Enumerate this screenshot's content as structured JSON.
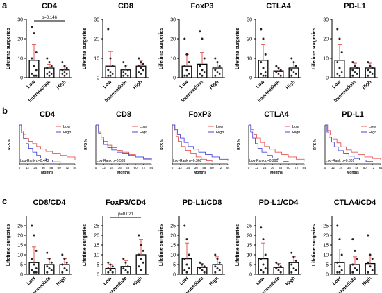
{
  "figure": {
    "panel_labels": [
      "a",
      "b",
      "c"
    ]
  },
  "style": {
    "bar_stroke": "#000000",
    "point_color": "#222222",
    "errorbar_color": "#e05a5a",
    "low_color": "#e05a5a",
    "high_color": "#4a4ad6",
    "text_color": "#000000"
  },
  "chart_data": [
    {
      "panel": "a",
      "type": "bar",
      "title": "CD4",
      "ylabel": "Lifetime surgeries",
      "categories": [
        "Low",
        "Intermediate",
        "High"
      ],
      "values": [
        9,
        5,
        4
      ],
      "err": [
        8,
        2,
        2.5
      ],
      "ylim": [
        0,
        30
      ],
      "yticks": [
        0,
        10,
        20,
        30
      ],
      "points": [
        [
          26,
          23,
          13,
          10,
          6,
          4,
          2,
          1,
          1
        ],
        [
          10,
          8,
          6,
          5,
          3,
          2,
          2,
          1
        ],
        [
          8,
          6,
          5,
          4,
          3,
          2,
          2,
          1
        ]
      ],
      "annotations": [
        {
          "text": "p=0.146",
          "from": 0,
          "to": 2
        }
      ]
    },
    {
      "panel": "a",
      "type": "bar",
      "title": "CD8",
      "ylabel": "Lifetime surgeries",
      "categories": [
        "Low",
        "Intermediate",
        "High"
      ],
      "values": [
        6,
        4,
        6
      ],
      "err": [
        7.5,
        2.5,
        3
      ],
      "ylim": [
        0,
        30
      ],
      "yticks": [
        0,
        10,
        20,
        30
      ],
      "points": [
        [
          25,
          10,
          6,
          4,
          3,
          2,
          1,
          1
        ],
        [
          8,
          6,
          4,
          3,
          2,
          1,
          1
        ],
        [
          10,
          8,
          7,
          6,
          5,
          4,
          3,
          2
        ]
      ],
      "annotations": []
    },
    {
      "panel": "a",
      "type": "bar",
      "title": "FoxP3",
      "ylabel": "Lifetime surgeries",
      "categories": [
        "Low",
        "Intermediate",
        "High"
      ],
      "values": [
        6,
        7,
        5
      ],
      "err": [
        6,
        6,
        3
      ],
      "ylim": [
        0,
        30
      ],
      "yticks": [
        0,
        10,
        20,
        30
      ],
      "points": [
        [
          20,
          12,
          8,
          6,
          4,
          2,
          1,
          1
        ],
        [
          24,
          20,
          10,
          6,
          4,
          3,
          2,
          1
        ],
        [
          10,
          8,
          6,
          4,
          3,
          2,
          1
        ]
      ],
      "annotations": []
    },
    {
      "panel": "a",
      "type": "bar",
      "title": "CTLA4",
      "ylabel": "Lifetime surgeries",
      "categories": [
        "Low",
        "Intermediate",
        "High"
      ],
      "values": [
        9,
        3.5,
        5
      ],
      "err": [
        8,
        2,
        3
      ],
      "ylim": [
        0,
        30
      ],
      "yticks": [
        0,
        10,
        20,
        30
      ],
      "points": [
        [
          25,
          20,
          12,
          8,
          5,
          3,
          2,
          1,
          1
        ],
        [
          6,
          5,
          4,
          3,
          2,
          1
        ],
        [
          10,
          8,
          6,
          4,
          3,
          2,
          1
        ]
      ],
      "annotations": []
    },
    {
      "panel": "a",
      "type": "bar",
      "title": "PD-L1",
      "ylabel": "Lifetime surgeries",
      "categories": [
        "Low",
        "Intermediate",
        "High"
      ],
      "values": [
        9,
        5,
        5
      ],
      "err": [
        8,
        2.5,
        2.5
      ],
      "ylim": [
        0,
        30
      ],
      "yticks": [
        0,
        10,
        20,
        30
      ],
      "points": [
        [
          25,
          20,
          13,
          8,
          5,
          3,
          2,
          1
        ],
        [
          8,
          6,
          5,
          4,
          3,
          2,
          1
        ],
        [
          8,
          6,
          5,
          4,
          3,
          2,
          1
        ]
      ],
      "annotations": []
    },
    {
      "panel": "b",
      "type": "line",
      "title": "CD4",
      "ylabel": "RFS %",
      "xlabel": "Months",
      "xticks": [
        0,
        12,
        24,
        36,
        48,
        60,
        72,
        84
      ],
      "yticks": [
        0,
        50,
        100
      ],
      "xlim": [
        0,
        84
      ],
      "ylim": [
        0,
        100
      ],
      "logrank": "Log-Rank p=0.443",
      "series": [
        {
          "name": "Low",
          "x": [
            0,
            3,
            6,
            10,
            14,
            20,
            26,
            32,
            40,
            50,
            62,
            72,
            84
          ],
          "y": [
            100,
            85,
            75,
            65,
            58,
            52,
            45,
            38,
            32,
            26,
            22,
            18,
            10
          ]
        },
        {
          "name": "High",
          "x": [
            0,
            3,
            6,
            10,
            14,
            20,
            26,
            32,
            40,
            50,
            62
          ],
          "y": [
            100,
            80,
            65,
            52,
            40,
            30,
            22,
            15,
            10,
            5,
            3
          ]
        }
      ]
    },
    {
      "panel": "b",
      "type": "line",
      "title": "CD8",
      "ylabel": "RFS %",
      "xlabel": "Months",
      "xticks": [
        0,
        12,
        24,
        36,
        48,
        60,
        72,
        84
      ],
      "yticks": [
        0,
        50,
        100
      ],
      "xlim": [
        0,
        84
      ],
      "ylim": [
        0,
        100
      ],
      "logrank": "Log-Rank p=0.583",
      "series": [
        {
          "name": "Low",
          "x": [
            0,
            4,
            8,
            12,
            18,
            24,
            32,
            40,
            50,
            60,
            72,
            84
          ],
          "y": [
            100,
            82,
            68,
            58,
            48,
            42,
            35,
            30,
            24,
            18,
            12,
            8
          ]
        },
        {
          "name": "High",
          "x": [
            0,
            4,
            8,
            12,
            18,
            24,
            32,
            40,
            50,
            60,
            72,
            84
          ],
          "y": [
            100,
            78,
            62,
            50,
            42,
            36,
            30,
            26,
            22,
            18,
            14,
            10
          ]
        }
      ]
    },
    {
      "panel": "b",
      "type": "line",
      "title": "FoxP3",
      "ylabel": "RFS %",
      "xlabel": "Months",
      "xticks": [
        0,
        12,
        24,
        36,
        48,
        60,
        72,
        84
      ],
      "yticks": [
        0,
        50,
        100
      ],
      "xlim": [
        0,
        84
      ],
      "ylim": [
        0,
        100
      ],
      "logrank": "Log-Rank p=0.368",
      "series": [
        {
          "name": "Low",
          "x": [
            0,
            3,
            6,
            10,
            14,
            20,
            28,
            36,
            44,
            52,
            60
          ],
          "y": [
            100,
            85,
            70,
            58,
            45,
            35,
            26,
            18,
            12,
            8,
            5
          ]
        },
        {
          "name": "High",
          "x": [
            0,
            4,
            8,
            12,
            18,
            24,
            32,
            40,
            50,
            60,
            72,
            84
          ],
          "y": [
            100,
            88,
            76,
            66,
            55,
            45,
            38,
            30,
            24,
            18,
            12,
            8
          ]
        }
      ]
    },
    {
      "panel": "b",
      "type": "line",
      "title": "CTLA4",
      "ylabel": "RFS %",
      "xlabel": "Months",
      "xticks": [
        0,
        12,
        24,
        36,
        48,
        60,
        72,
        84
      ],
      "yticks": [
        0,
        50,
        100
      ],
      "xlim": [
        0,
        84
      ],
      "ylim": [
        0,
        100
      ],
      "logrank": "Log-Rank p=0.291",
      "series": [
        {
          "name": "Low",
          "x": [
            0,
            4,
            8,
            12,
            18,
            24,
            32,
            40,
            50,
            60,
            72,
            84
          ],
          "y": [
            100,
            88,
            76,
            66,
            55,
            45,
            38,
            30,
            24,
            18,
            12,
            8
          ]
        },
        {
          "name": "High",
          "x": [
            0,
            3,
            6,
            10,
            14,
            20,
            28,
            36,
            44,
            52,
            60
          ],
          "y": [
            100,
            82,
            66,
            52,
            40,
            30,
            22,
            15,
            10,
            6,
            4
          ]
        }
      ]
    },
    {
      "panel": "b",
      "type": "line",
      "title": "PD-L1",
      "ylabel": "RFS %",
      "xlabel": "Months",
      "xticks": [
        0,
        12,
        24,
        36,
        48,
        60,
        72,
        84
      ],
      "yticks": [
        0,
        50,
        100
      ],
      "xlim": [
        0,
        84
      ],
      "ylim": [
        0,
        100
      ],
      "logrank": "Log-Rank p=0.301",
      "series": [
        {
          "name": "Low",
          "x": [
            0,
            4,
            8,
            12,
            18,
            24,
            32,
            40,
            50,
            60,
            72,
            84
          ],
          "y": [
            100,
            86,
            74,
            64,
            54,
            44,
            36,
            30,
            24,
            18,
            14,
            10
          ]
        },
        {
          "name": "High",
          "x": [
            0,
            3,
            6,
            10,
            14,
            20,
            28,
            36,
            44,
            52,
            62,
            72
          ],
          "y": [
            100,
            82,
            68,
            56,
            44,
            34,
            26,
            20,
            14,
            10,
            6,
            4
          ]
        }
      ]
    },
    {
      "panel": "c",
      "type": "bar",
      "title": "CD8/CD4",
      "ylabel": "Lifetime surgeries",
      "categories": [
        "Low",
        "Intermediate",
        "High"
      ],
      "values": [
        6,
        5,
        5
      ],
      "err": [
        8,
        3,
        3
      ],
      "ylim": [
        0,
        30
      ],
      "yticks": [
        0,
        5,
        10,
        15,
        20,
        25
      ],
      "points": [
        [
          25,
          20,
          12,
          8,
          5,
          3,
          2,
          1,
          1
        ],
        [
          11,
          8,
          6,
          4,
          3,
          2,
          1
        ],
        [
          10,
          8,
          6,
          5,
          3,
          2,
          1
        ]
      ],
      "annotations": []
    },
    {
      "panel": "c",
      "type": "bar",
      "title": "FoxP3/CD4",
      "ylabel": "Lifetime surgeries",
      "categories": [
        "Low",
        "Intermediate",
        "High"
      ],
      "values": [
        3,
        4,
        10
      ],
      "err": [
        2,
        3,
        8
      ],
      "ylim": [
        0,
        30
      ],
      "yticks": [
        0,
        5,
        10,
        15,
        20,
        25
      ],
      "points": [
        [
          6,
          5,
          4,
          3,
          2,
          1,
          1
        ],
        [
          8,
          6,
          4,
          3,
          2,
          1
        ],
        [
          20,
          15,
          12,
          10,
          8,
          6,
          4,
          2
        ]
      ],
      "annotations": [
        {
          "text": "p=0.021",
          "from": 0,
          "to": 2
        }
      ]
    },
    {
      "panel": "c",
      "type": "bar",
      "title": "PD-L1/CD8",
      "ylabel": "Lifetime surgeries",
      "categories": [
        "Low",
        "Intermediate",
        "High"
      ],
      "values": [
        8,
        3.5,
        5
      ],
      "err": [
        8,
        2,
        4
      ],
      "ylim": [
        0,
        30
      ],
      "yticks": [
        0,
        5,
        10,
        15,
        20,
        25
      ],
      "points": [
        [
          25,
          18,
          10,
          8,
          5,
          3,
          2,
          1
        ],
        [
          6,
          5,
          4,
          3,
          2,
          1
        ],
        [
          10,
          8,
          6,
          4,
          3,
          2,
          1
        ]
      ],
      "annotations": []
    },
    {
      "panel": "c",
      "type": "bar",
      "title": "PD-L1/CD4",
      "ylabel": "Lifetime surgeries",
      "categories": [
        "Low",
        "Intermediate",
        "High"
      ],
      "values": [
        8,
        3.5,
        6
      ],
      "err": [
        8,
        2,
        3
      ],
      "ylim": [
        0,
        30
      ],
      "yticks": [
        0,
        5,
        10,
        15,
        20,
        25
      ],
      "points": [
        [
          24,
          18,
          10,
          8,
          5,
          3,
          2,
          1
        ],
        [
          6,
          5,
          4,
          3,
          2,
          1
        ],
        [
          11,
          9,
          7,
          5,
          3,
          2,
          1
        ]
      ],
      "annotations": []
    },
    {
      "panel": "c",
      "type": "bar",
      "title": "CTLA4/CD4",
      "ylabel": "Lifetime surgeries",
      "categories": [
        "Low",
        "Intermediate",
        "High"
      ],
      "values": [
        6,
        5,
        5.5
      ],
      "err": [
        7,
        4,
        4
      ],
      "ylim": [
        0,
        30
      ],
      "yticks": [
        0,
        5,
        10,
        15,
        20,
        25
      ],
      "points": [
        [
          25,
          18,
          10,
          6,
          4,
          2,
          1,
          1
        ],
        [
          18,
          12,
          8,
          5,
          3,
          2,
          1
        ],
        [
          20,
          10,
          8,
          6,
          4,
          2,
          1
        ]
      ],
      "annotations": []
    }
  ]
}
